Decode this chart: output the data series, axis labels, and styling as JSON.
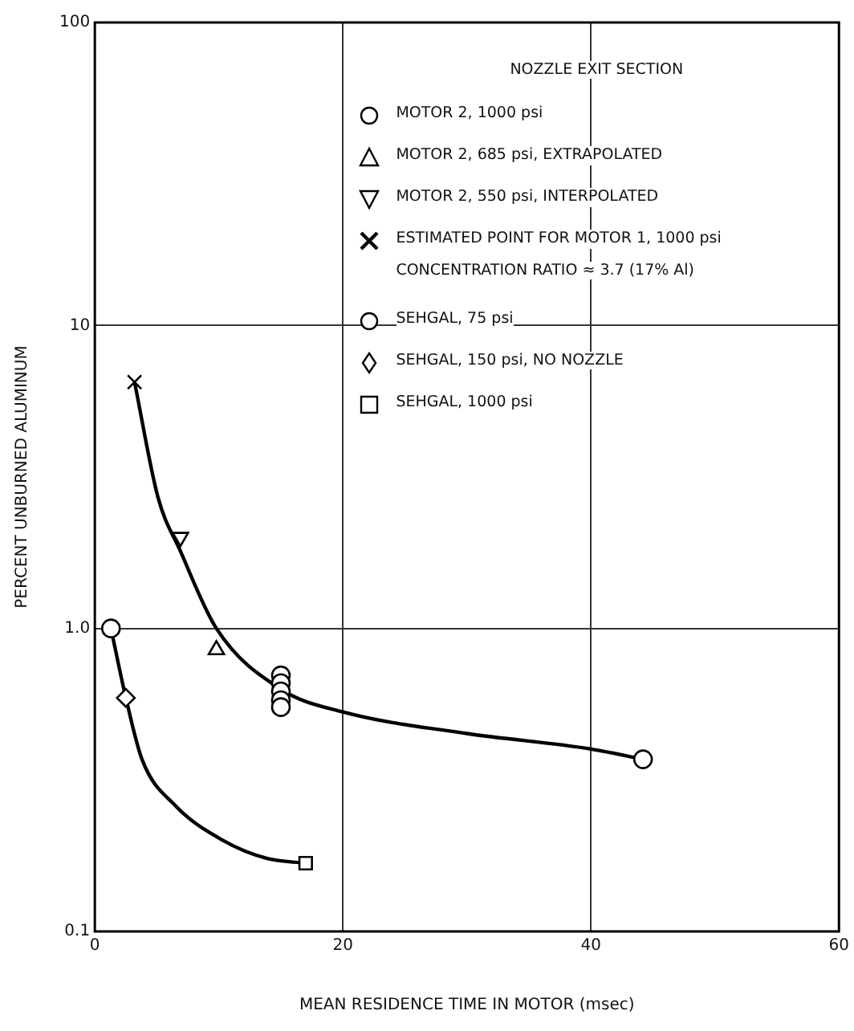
{
  "chart_data": {
    "type": "scatter",
    "xlabel": "MEAN RESIDENCE TIME IN MOTOR (msec)",
    "ylabel": "PERCENT UNBURNED ALUMINUM",
    "legend_title": "NOZZLE EXIT SECTION",
    "legend": "top right",
    "log": "y",
    "grid": true,
    "xlim": [
      0,
      60
    ],
    "xticks": [
      0,
      20,
      40,
      60
    ],
    "ylim": [
      0.1,
      100
    ],
    "yticks": [
      0.1,
      {
        "value": 1,
        "label": "1.0"
      },
      10,
      100
    ],
    "annotations": [
      "CONCENTRATION RATIO ≈ 3.7 (17% Al)"
    ],
    "series": [
      {
        "name": "MOTOR 2, 1000 psi",
        "color": "#000000",
        "marker": "circle",
        "x": [
          44.2,
          15,
          15,
          15,
          15,
          15
        ],
        "values": [
          0.37,
          0.7,
          0.66,
          0.62,
          0.58,
          0.55
        ]
      },
      {
        "name": "MOTOR 2, 685 psi, EXTRAPOLATED",
        "color": "#000000",
        "marker": "triangle",
        "x": [
          9.8
        ],
        "values": [
          0.85
        ]
      },
      {
        "name": "MOTOR 2, 550 psi, INTERPOLATED",
        "color": "#000000",
        "marker": "triangle-down",
        "x": [
          6.9
        ],
        "values": [
          2.0
        ]
      },
      {
        "name": "ESTIMATED POINT FOR MOTOR 1, 1000 psi",
        "color": "#000000",
        "marker": "cross",
        "x": [
          3.2
        ],
        "values": [
          6.5
        ]
      },
      {
        "name": "SEHGAL, 75 psi",
        "color": "#000000",
        "marker": "circle",
        "x": [
          1.3
        ],
        "values": [
          1.0
        ]
      },
      {
        "name": "SEHGAL, 150 psi, NO NOZZLE",
        "color": "#000000",
        "marker": "diamond",
        "x": [
          2.5
        ],
        "values": [
          0.59
        ]
      },
      {
        "name": "SEHGAL, 1000 psi",
        "color": "#000000",
        "marker": "square",
        "x": [
          17
        ],
        "values": [
          0.168
        ]
      },
      {
        "type": "line",
        "color": "#000000",
        "marker": "none",
        "line_style": "solid",
        "x": [
          3.2,
          5.1,
          6.9,
          9.8,
          15,
          20,
          30,
          40,
          44.2
        ],
        "values": [
          6.5,
          2.7,
          1.8,
          1.0,
          0.63,
          0.53,
          0.45,
          0.4,
          0.37
        ]
      },
      {
        "type": "line",
        "color": "#000000",
        "marker": "none",
        "line_style": "solid",
        "x": [
          1.3,
          2.5,
          3.8,
          6.5,
          10.3,
          13.9,
          17
        ],
        "values": [
          1.0,
          0.59,
          0.37,
          0.26,
          0.2,
          0.174,
          0.168
        ]
      }
    ]
  }
}
